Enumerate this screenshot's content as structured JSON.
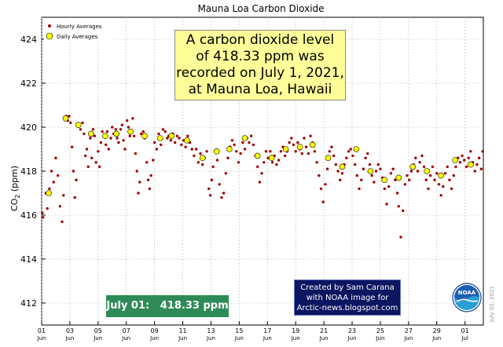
{
  "chart_data": {
    "type": "scatter",
    "title": "Mauna Loa Carbon Dioxide",
    "ylabel_main": "CO",
    "ylabel_sub": "2",
    "ylabel_unit": " (ppm)",
    "ylim": [
      411,
      425
    ],
    "yticks": [
      412,
      414,
      416,
      418,
      420,
      422,
      424
    ],
    "xlim_day": [
      1,
      32.3
    ],
    "xticks": [
      {
        "day": 1,
        "label": "01",
        "sub": "Jun"
      },
      {
        "day": 3,
        "label": "03",
        "sub": "Jun"
      },
      {
        "day": 5,
        "label": "05",
        "sub": "Jun"
      },
      {
        "day": 7,
        "label": "07",
        "sub": "Jun"
      },
      {
        "day": 9,
        "label": "09",
        "sub": "Jun"
      },
      {
        "day": 11,
        "label": "11",
        "sub": "Jun"
      },
      {
        "day": 13,
        "label": "13",
        "sub": "Jun"
      },
      {
        "day": 15,
        "label": "15",
        "sub": "Jun"
      },
      {
        "day": 17,
        "label": "17",
        "sub": "Jun"
      },
      {
        "day": 19,
        "label": "19",
        "sub": "Jun"
      },
      {
        "day": 21,
        "label": "21",
        "sub": "Jun"
      },
      {
        "day": 23,
        "label": "23",
        "sub": "Jun"
      },
      {
        "day": 25,
        "label": "25",
        "sub": "Jun"
      },
      {
        "day": 27,
        "label": "27",
        "sub": "Jun"
      },
      {
        "day": 29,
        "label": "29",
        "sub": "Jun"
      },
      {
        "day": 31,
        "label": "01",
        "sub": "Jul"
      }
    ],
    "grid": true,
    "legend": "top-left",
    "series": [
      {
        "name": "Hourly Averages",
        "color": "#a00000",
        "points": [
          [
            1.05,
            416.1
          ],
          [
            1.1,
            415.9
          ],
          [
            1.3,
            417.0
          ],
          [
            1.4,
            416.3
          ],
          [
            1.55,
            417.2
          ],
          [
            1.7,
            418.0
          ],
          [
            1.85,
            417.5
          ],
          [
            2.0,
            418.6
          ],
          [
            2.15,
            417.8
          ],
          [
            2.3,
            416.4
          ],
          [
            2.45,
            415.7
          ],
          [
            2.55,
            416.9
          ],
          [
            2.75,
            420.5
          ],
          [
            2.85,
            420.3
          ],
          [
            2.95,
            420.5
          ],
          [
            3.05,
            420.2
          ],
          [
            3.15,
            419.1
          ],
          [
            3.25,
            418.0
          ],
          [
            3.35,
            416.8
          ],
          [
            3.45,
            417.6
          ],
          [
            3.6,
            420.1
          ],
          [
            3.75,
            419.9
          ],
          [
            3.9,
            420.2
          ],
          [
            4.0,
            419.7
          ],
          [
            4.1,
            418.7
          ],
          [
            4.2,
            419.0
          ],
          [
            4.3,
            418.2
          ],
          [
            4.45,
            419.5
          ],
          [
            4.55,
            418.6
          ],
          [
            4.65,
            419.9
          ],
          [
            4.75,
            419.6
          ],
          [
            4.85,
            418.4
          ],
          [
            5.0,
            418.9
          ],
          [
            5.1,
            418.2
          ],
          [
            5.2,
            419.3
          ],
          [
            5.3,
            419.8
          ],
          [
            5.45,
            419.6
          ],
          [
            5.55,
            419.2
          ],
          [
            5.65,
            419.8
          ],
          [
            5.75,
            419.0
          ],
          [
            5.9,
            419.5
          ],
          [
            6.0,
            420.0
          ],
          [
            6.1,
            419.7
          ],
          [
            6.25,
            419.9
          ],
          [
            6.35,
            419.5
          ],
          [
            6.45,
            419.3
          ],
          [
            6.6,
            419.9
          ],
          [
            6.7,
            420.1
          ],
          [
            6.8,
            419.4
          ],
          [
            6.9,
            419.0
          ],
          [
            7.05,
            420.3
          ],
          [
            7.15,
            420.0
          ],
          [
            7.25,
            419.6
          ],
          [
            7.35,
            419.8
          ],
          [
            7.45,
            420.4
          ],
          [
            7.55,
            419.6
          ],
          [
            7.65,
            418.8
          ],
          [
            7.75,
            418.0
          ],
          [
            7.85,
            417.0
          ],
          [
            7.95,
            417.5
          ],
          [
            8.05,
            419.7
          ],
          [
            8.2,
            419.8
          ],
          [
            8.3,
            419.5
          ],
          [
            8.45,
            418.4
          ],
          [
            8.55,
            417.6
          ],
          [
            8.65,
            417.2
          ],
          [
            8.75,
            417.8
          ],
          [
            8.9,
            418.5
          ],
          [
            9.0,
            419.3
          ],
          [
            9.15,
            419.0
          ],
          [
            9.3,
            419.7
          ],
          [
            9.45,
            419.2
          ],
          [
            9.6,
            419.9
          ],
          [
            9.75,
            419.8
          ],
          [
            9.9,
            419.5
          ],
          [
            10.0,
            419.6
          ],
          [
            10.15,
            419.4
          ],
          [
            10.3,
            419.7
          ],
          [
            10.45,
            419.3
          ],
          [
            10.6,
            419.6
          ],
          [
            10.75,
            419.5
          ],
          [
            10.9,
            419.2
          ],
          [
            11.05,
            419.4
          ],
          [
            11.2,
            419.1
          ],
          [
            11.35,
            419.6
          ],
          [
            11.5,
            419.3
          ],
          [
            11.65,
            419.0
          ],
          [
            11.8,
            418.7
          ],
          [
            11.95,
            419.0
          ],
          [
            12.1,
            418.4
          ],
          [
            12.25,
            418.8
          ],
          [
            12.4,
            418.3
          ],
          [
            12.55,
            418.6
          ],
          [
            12.7,
            418.9
          ],
          [
            12.85,
            417.2
          ],
          [
            12.95,
            416.9
          ],
          [
            13.05,
            417.6
          ],
          [
            13.15,
            418.2
          ],
          [
            13.3,
            418.9
          ],
          [
            13.45,
            418.5
          ],
          [
            13.6,
            417.4
          ],
          [
            13.75,
            416.8
          ],
          [
            13.9,
            417.0
          ],
          [
            14.05,
            417.9
          ],
          [
            14.2,
            418.6
          ],
          [
            14.35,
            419.1
          ],
          [
            14.5,
            419.4
          ],
          [
            14.65,
            419.2
          ],
          [
            14.8,
            418.9
          ],
          [
            14.95,
            418.4
          ],
          [
            15.1,
            418.8
          ],
          [
            15.25,
            419.3
          ],
          [
            15.4,
            419.0
          ],
          [
            15.55,
            419.5
          ],
          [
            15.7,
            419.3
          ],
          [
            15.85,
            419.6
          ],
          [
            16.0,
            419.2
          ],
          [
            16.15,
            418.7
          ],
          [
            16.3,
            418.2
          ],
          [
            16.45,
            417.5
          ],
          [
            16.6,
            417.9
          ],
          [
            16.75,
            418.4
          ],
          [
            16.9,
            418.9
          ],
          [
            17.05,
            418.6
          ],
          [
            17.2,
            418.9
          ],
          [
            17.35,
            418.4
          ],
          [
            17.5,
            418.7
          ],
          [
            17.65,
            418.3
          ],
          [
            17.8,
            418.5
          ],
          [
            17.95,
            418.9
          ],
          [
            18.1,
            419.1
          ],
          [
            18.25,
            418.7
          ],
          [
            18.4,
            418.9
          ],
          [
            18.55,
            419.3
          ],
          [
            18.7,
            419.5
          ],
          [
            18.85,
            419.2
          ],
          [
            19.0,
            418.9
          ],
          [
            19.15,
            419.3
          ],
          [
            19.3,
            419.0
          ],
          [
            19.45,
            418.8
          ],
          [
            19.6,
            419.5
          ],
          [
            19.75,
            419.1
          ],
          [
            19.9,
            418.8
          ],
          [
            20.05,
            419.6
          ],
          [
            20.2,
            419.3
          ],
          [
            20.35,
            418.9
          ],
          [
            20.5,
            418.4
          ],
          [
            20.65,
            417.8
          ],
          [
            20.8,
            417.2
          ],
          [
            20.95,
            416.6
          ],
          [
            21.1,
            417.4
          ],
          [
            21.25,
            418.1
          ],
          [
            21.4,
            418.9
          ],
          [
            21.55,
            419.1
          ],
          [
            21.7,
            418.7
          ],
          [
            21.85,
            418.3
          ],
          [
            22.0,
            418.0
          ],
          [
            22.15,
            417.6
          ],
          [
            22.3,
            417.9
          ],
          [
            22.45,
            418.3
          ],
          [
            22.6,
            418.6
          ],
          [
            22.75,
            418.9
          ],
          [
            22.9,
            419.0
          ],
          [
            23.05,
            418.7
          ],
          [
            23.2,
            418.3
          ],
          [
            23.35,
            417.8
          ],
          [
            23.5,
            417.2
          ],
          [
            23.65,
            417.6
          ],
          [
            23.8,
            418.1
          ],
          [
            23.95,
            418.6
          ],
          [
            24.1,
            418.8
          ],
          [
            24.25,
            418.3
          ],
          [
            24.4,
            417.8
          ],
          [
            24.55,
            417.5
          ],
          [
            24.7,
            418.0
          ],
          [
            24.85,
            418.3
          ],
          [
            25.0,
            418.1
          ],
          [
            25.15,
            417.7
          ],
          [
            25.3,
            417.2
          ],
          [
            25.45,
            416.5
          ],
          [
            25.6,
            417.3
          ],
          [
            25.75,
            417.9
          ],
          [
            25.9,
            418.1
          ],
          [
            26.05,
            417.6
          ],
          [
            26.2,
            417.0
          ],
          [
            26.3,
            416.4
          ],
          [
            26.45,
            415.0
          ],
          [
            26.6,
            416.2
          ],
          [
            26.75,
            417.4
          ],
          [
            26.9,
            417.8
          ],
          [
            27.05,
            417.6
          ],
          [
            27.2,
            418.0
          ],
          [
            27.35,
            418.3
          ],
          [
            27.5,
            418.6
          ],
          [
            27.65,
            418.0
          ],
          [
            27.8,
            418.4
          ],
          [
            27.95,
            418.7
          ],
          [
            28.1,
            418.2
          ],
          [
            28.25,
            417.6
          ],
          [
            28.4,
            417.2
          ],
          [
            28.55,
            417.8
          ],
          [
            28.7,
            418.2
          ],
          [
            28.85,
            417.6
          ],
          [
            29.0,
            417.9
          ],
          [
            29.15,
            417.4
          ],
          [
            29.3,
            416.9
          ],
          [
            29.45,
            417.3
          ],
          [
            29.6,
            417.9
          ],
          [
            29.75,
            418.2
          ],
          [
            29.9,
            417.6
          ],
          [
            30.05,
            417.2
          ],
          [
            30.2,
            417.8
          ],
          [
            30.35,
            418.2
          ],
          [
            30.5,
            418.6
          ],
          [
            30.65,
            418.4
          ],
          [
            30.8,
            418.7
          ],
          [
            30.95,
            418.5
          ],
          [
            31.1,
            418.2
          ],
          [
            31.25,
            418.6
          ],
          [
            31.4,
            418.9
          ],
          [
            31.55,
            418.4
          ],
          [
            31.7,
            418.0
          ],
          [
            31.85,
            418.3
          ],
          [
            32.0,
            418.6
          ],
          [
            32.15,
            418.1
          ],
          [
            32.25,
            418.9
          ]
        ]
      },
      {
        "name": "Daily Averages",
        "color": "#ffff00",
        "points": [
          [
            1.5,
            417.0
          ],
          [
            2.7,
            420.4
          ],
          [
            3.6,
            420.1
          ],
          [
            4.5,
            419.7
          ],
          [
            5.5,
            419.6
          ],
          [
            6.3,
            419.7
          ],
          [
            7.3,
            419.8
          ],
          [
            8.3,
            419.6
          ],
          [
            9.4,
            419.5
          ],
          [
            10.2,
            419.6
          ],
          [
            11.3,
            419.4
          ],
          [
            12.4,
            418.6
          ],
          [
            13.4,
            418.9
          ],
          [
            14.3,
            419.0
          ],
          [
            15.4,
            419.5
          ],
          [
            16.3,
            418.7
          ],
          [
            17.3,
            418.6
          ],
          [
            18.3,
            419.0
          ],
          [
            19.3,
            419.1
          ],
          [
            20.2,
            419.2
          ],
          [
            21.3,
            418.6
          ],
          [
            22.3,
            418.2
          ],
          [
            23.3,
            419.0
          ],
          [
            24.3,
            418.0
          ],
          [
            25.3,
            417.6
          ],
          [
            26.3,
            417.7
          ],
          [
            27.3,
            418.2
          ],
          [
            28.3,
            418.0
          ],
          [
            29.3,
            417.8
          ],
          [
            30.3,
            418.5
          ],
          [
            31.4,
            418.3
          ]
        ]
      }
    ]
  },
  "annotation": {
    "line1": "A carbon dioxide level",
    "line2": "of 418.33 ppm was",
    "line3": "recorded on July 1, 2021,",
    "line4": "at Mauna Loa, Hawaii"
  },
  "value_badge": "July 01:   418.33 ppm",
  "credit": {
    "line1": "Created by Sam Carana",
    "line2": "with NOAA  image for",
    "line3": "Arctic-news.blogspot.com"
  },
  "logo_text": "NOAA",
  "side_date": "July 02, 2021",
  "colors": {
    "hourly": "#a00000",
    "daily": "#ffff00",
    "badge": "#2e8b57",
    "credit_bg": "#0b1560",
    "annotation_bg": "#ffff99"
  },
  "icons": {
    "logo": "noaa-logo-icon"
  }
}
